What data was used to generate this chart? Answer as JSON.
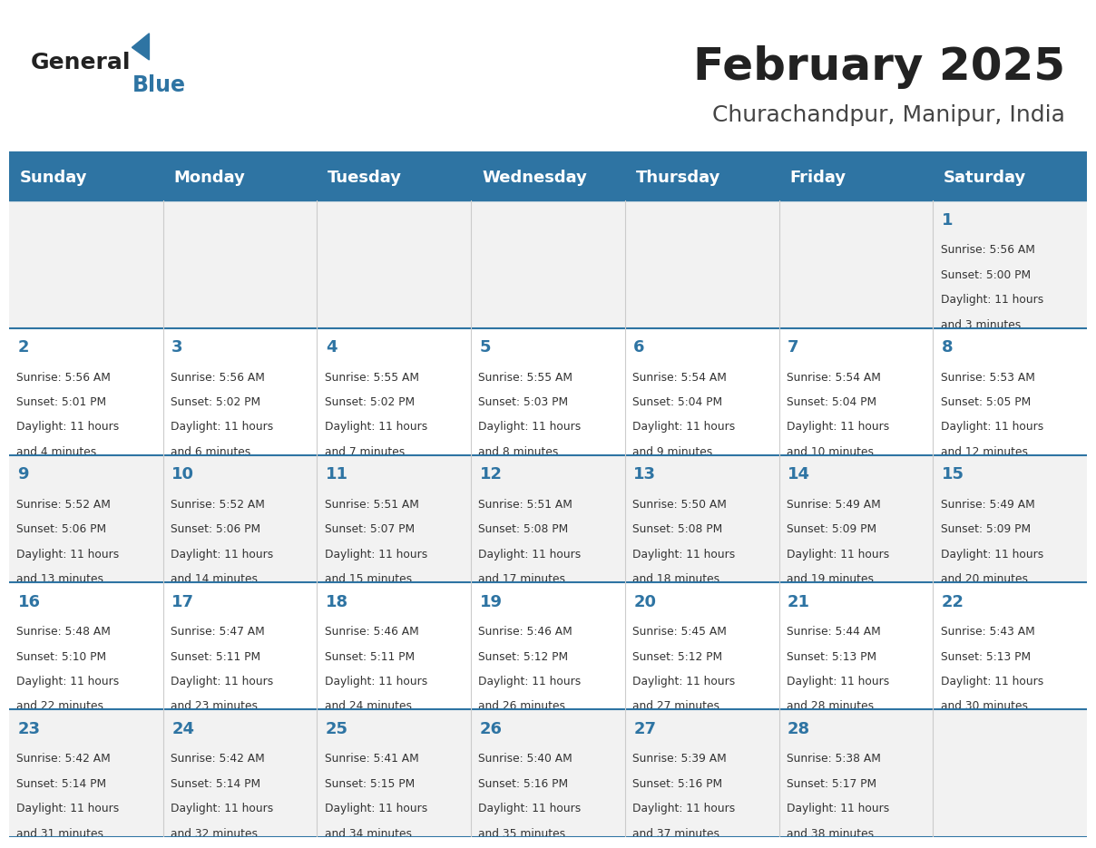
{
  "title": "February 2025",
  "subtitle": "Churachandpur, Manipur, India",
  "days_of_week": [
    "Sunday",
    "Monday",
    "Tuesday",
    "Wednesday",
    "Thursday",
    "Friday",
    "Saturday"
  ],
  "header_bg": "#2E74A3",
  "header_text": "#FFFFFF",
  "row_bg_odd": "#F2F2F2",
  "row_bg_even": "#FFFFFF",
  "cell_text_color": "#333333",
  "day_number_color": "#2E74A3",
  "title_color": "#222222",
  "subtitle_color": "#444444",
  "divider_color": "#2E74A3",
  "logo_general_color": "#222222",
  "logo_blue_color": "#2E74A3",
  "calendar_data": [
    [
      null,
      null,
      null,
      null,
      null,
      null,
      {
        "day": 1,
        "sunrise": "5:56 AM",
        "sunset": "5:00 PM",
        "daylight": "11 hours and 3 minutes."
      }
    ],
    [
      {
        "day": 2,
        "sunrise": "5:56 AM",
        "sunset": "5:01 PM",
        "daylight": "11 hours and 4 minutes."
      },
      {
        "day": 3,
        "sunrise": "5:56 AM",
        "sunset": "5:02 PM",
        "daylight": "11 hours and 6 minutes."
      },
      {
        "day": 4,
        "sunrise": "5:55 AM",
        "sunset": "5:02 PM",
        "daylight": "11 hours and 7 minutes."
      },
      {
        "day": 5,
        "sunrise": "5:55 AM",
        "sunset": "5:03 PM",
        "daylight": "11 hours and 8 minutes."
      },
      {
        "day": 6,
        "sunrise": "5:54 AM",
        "sunset": "5:04 PM",
        "daylight": "11 hours and 9 minutes."
      },
      {
        "day": 7,
        "sunrise": "5:54 AM",
        "sunset": "5:04 PM",
        "daylight": "11 hours and 10 minutes."
      },
      {
        "day": 8,
        "sunrise": "5:53 AM",
        "sunset": "5:05 PM",
        "daylight": "11 hours and 12 minutes."
      }
    ],
    [
      {
        "day": 9,
        "sunrise": "5:52 AM",
        "sunset": "5:06 PM",
        "daylight": "11 hours and 13 minutes."
      },
      {
        "day": 10,
        "sunrise": "5:52 AM",
        "sunset": "5:06 PM",
        "daylight": "11 hours and 14 minutes."
      },
      {
        "day": 11,
        "sunrise": "5:51 AM",
        "sunset": "5:07 PM",
        "daylight": "11 hours and 15 minutes."
      },
      {
        "day": 12,
        "sunrise": "5:51 AM",
        "sunset": "5:08 PM",
        "daylight": "11 hours and 17 minutes."
      },
      {
        "day": 13,
        "sunrise": "5:50 AM",
        "sunset": "5:08 PM",
        "daylight": "11 hours and 18 minutes."
      },
      {
        "day": 14,
        "sunrise": "5:49 AM",
        "sunset": "5:09 PM",
        "daylight": "11 hours and 19 minutes."
      },
      {
        "day": 15,
        "sunrise": "5:49 AM",
        "sunset": "5:09 PM",
        "daylight": "11 hours and 20 minutes."
      }
    ],
    [
      {
        "day": 16,
        "sunrise": "5:48 AM",
        "sunset": "5:10 PM",
        "daylight": "11 hours and 22 minutes."
      },
      {
        "day": 17,
        "sunrise": "5:47 AM",
        "sunset": "5:11 PM",
        "daylight": "11 hours and 23 minutes."
      },
      {
        "day": 18,
        "sunrise": "5:46 AM",
        "sunset": "5:11 PM",
        "daylight": "11 hours and 24 minutes."
      },
      {
        "day": 19,
        "sunrise": "5:46 AM",
        "sunset": "5:12 PM",
        "daylight": "11 hours and 26 minutes."
      },
      {
        "day": 20,
        "sunrise": "5:45 AM",
        "sunset": "5:12 PM",
        "daylight": "11 hours and 27 minutes."
      },
      {
        "day": 21,
        "sunrise": "5:44 AM",
        "sunset": "5:13 PM",
        "daylight": "11 hours and 28 minutes."
      },
      {
        "day": 22,
        "sunrise": "5:43 AM",
        "sunset": "5:13 PM",
        "daylight": "11 hours and 30 minutes."
      }
    ],
    [
      {
        "day": 23,
        "sunrise": "5:42 AM",
        "sunset": "5:14 PM",
        "daylight": "11 hours and 31 minutes."
      },
      {
        "day": 24,
        "sunrise": "5:42 AM",
        "sunset": "5:14 PM",
        "daylight": "11 hours and 32 minutes."
      },
      {
        "day": 25,
        "sunrise": "5:41 AM",
        "sunset": "5:15 PM",
        "daylight": "11 hours and 34 minutes."
      },
      {
        "day": 26,
        "sunrise": "5:40 AM",
        "sunset": "5:16 PM",
        "daylight": "11 hours and 35 minutes."
      },
      {
        "day": 27,
        "sunrise": "5:39 AM",
        "sunset": "5:16 PM",
        "daylight": "11 hours and 37 minutes."
      },
      {
        "day": 28,
        "sunrise": "5:38 AM",
        "sunset": "5:17 PM",
        "daylight": "11 hours and 38 minutes."
      },
      null
    ]
  ]
}
